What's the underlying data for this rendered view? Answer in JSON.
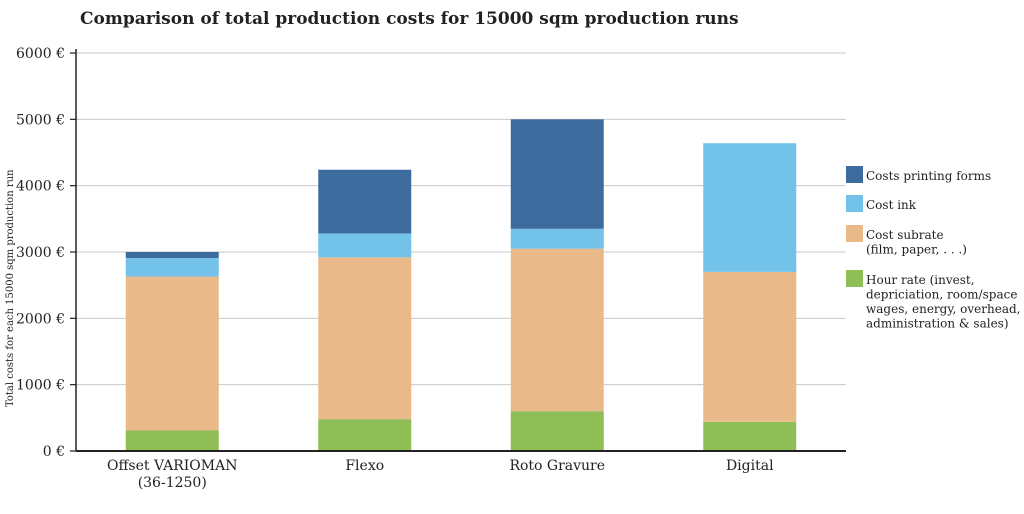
{
  "chart_data": {
    "type": "bar",
    "stacked": true,
    "title": "Comparison of total production costs for 15000 sqm production runs",
    "ylabel": "Total costs for each 15000 sqm production run",
    "xlabel": "",
    "ylim": [
      0,
      6000
    ],
    "yticks": [
      0,
      1000,
      2000,
      3000,
      4000,
      5000,
      6000
    ],
    "ytick_labels": [
      "0 €",
      "1000 €",
      "2000 €",
      "3000 €",
      "4000 €",
      "5000 €",
      "6000 €"
    ],
    "grid": true,
    "legend_position": "right",
    "categories": [
      [
        "Offset VARIOMAN",
        "(36-1250)"
      ],
      [
        "Flexo"
      ],
      [
        "Roto Gravure"
      ],
      [
        "Digital"
      ]
    ],
    "series": [
      {
        "name": [
          "Hour rate (invest,",
          "depriciation, room/space",
          "wages, energy, overhead,",
          "administration & sales)"
        ],
        "color": "#8fbe56",
        "values": [
          310,
          480,
          600,
          440
        ]
      },
      {
        "name": [
          "Cost subrate",
          "(film, paper, . . .)"
        ],
        "color": "#eab98a",
        "values": [
          2320,
          2440,
          2450,
          2260
        ]
      },
      {
        "name": [
          "Cost ink"
        ],
        "color": "#72c2ea",
        "values": [
          280,
          360,
          300,
          1940
        ]
      },
      {
        "name": [
          "Costs printing forms"
        ],
        "color": "#3d6b9e",
        "values": [
          90,
          960,
          1650,
          0
        ]
      }
    ]
  }
}
